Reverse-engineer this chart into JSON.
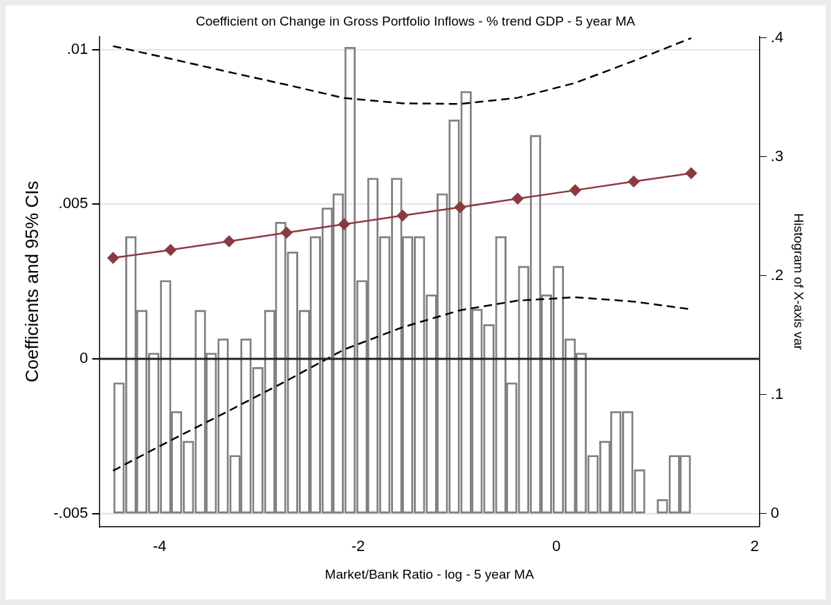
{
  "chart_data": {
    "type": "line",
    "title": "Coefficient on Change in Gross Portfolio Inflows - % trend GDP - 5 year MA",
    "xlabel": "Market/Bank Ratio - log - 5 year MA",
    "ylabel": "Coefficients and 95% CIs",
    "y2label": "Histogram of X-axis var",
    "xlim": [
      -4.61,
      2.05
    ],
    "xticks": [
      -4,
      -2,
      0,
      2
    ],
    "ylim": [
      -0.00543,
      0.01042
    ],
    "yticks": [
      {
        "value": -0.005,
        "label": "-.005"
      },
      {
        "value": 0,
        "label": "0"
      },
      {
        "value": 0.005,
        "label": ".005"
      },
      {
        "value": 0.01,
        "label": ".01"
      }
    ],
    "y2lim": [
      -0.011,
      0.401
    ],
    "y2ticks": [
      {
        "value": 0,
        "label": "0"
      },
      {
        "value": 0.1,
        "label": ".1"
      },
      {
        "value": 0.2,
        "label": ".2"
      },
      {
        "value": 0.3,
        "label": ".3"
      },
      {
        "value": 0.4,
        "label": ".4"
      }
    ],
    "grid": "y",
    "legend": false,
    "ref_lines": [
      {
        "axis": "y",
        "value": 0,
        "color": "#222222"
      }
    ],
    "series": [
      {
        "type": "bar",
        "axis": "y2",
        "color": "#808080",
        "x": [
          -4.41,
          -4.29,
          -4.18,
          -4.06,
          -3.94,
          -3.83,
          -3.71,
          -3.59,
          -3.48,
          -3.36,
          -3.24,
          -3.13,
          -3.01,
          -2.89,
          -2.78,
          -2.66,
          -2.54,
          -2.43,
          -2.31,
          -2.2,
          -2.08,
          -1.96,
          -1.85,
          -1.73,
          -1.61,
          -1.5,
          -1.38,
          -1.26,
          -1.15,
          -1.03,
          -0.91,
          -0.8,
          -0.68,
          -0.56,
          -0.45,
          -0.33,
          -0.21,
          -0.1,
          0.02,
          0.14,
          0.25,
          0.37,
          0.49,
          0.6,
          0.72,
          0.84,
          0.95,
          1.07,
          1.19,
          1.3
        ],
        "values": [
          0.11,
          0.233,
          0.171,
          0.135,
          0.196,
          0.086,
          0.061,
          0.171,
          0.135,
          0.147,
          0.049,
          0.147,
          0.123,
          0.171,
          0.245,
          0.22,
          0.171,
          0.233,
          0.257,
          0.269,
          0.392,
          0.196,
          0.282,
          0.233,
          0.282,
          0.233,
          0.233,
          0.184,
          0.269,
          0.331,
          0.355,
          0.172,
          0.159,
          0.233,
          0.11,
          0.208,
          0.318,
          0.184,
          0.208,
          0.147,
          0.135,
          0.049,
          0.061,
          0.086,
          0.086,
          0.037,
          0,
          0.012,
          0.049,
          0.049
        ]
      },
      {
        "color": "#8b3a40",
        "marker": "diamond",
        "line_style": "solid",
        "x": [
          -4.47,
          -3.89,
          -3.3,
          -2.72,
          -2.14,
          -1.55,
          -0.97,
          -0.39,
          0.19,
          0.78,
          1.36
        ],
        "values": [
          0.00326,
          0.00352,
          0.0038,
          0.00408,
          0.00435,
          0.00463,
          0.0049,
          0.00518,
          0.00545,
          0.00573,
          0.006
        ]
      },
      {
        "color": "#000000",
        "marker": "none",
        "line_style": "dashed",
        "x": [
          -4.47,
          -3.89,
          -3.3,
          -2.72,
          -2.14,
          -1.55,
          -0.97,
          -0.39,
          0.19,
          0.78,
          1.36
        ],
        "values": [
          0.01011,
          0.0097,
          0.00927,
          0.00886,
          0.00843,
          0.00826,
          0.00824,
          0.00844,
          0.00892,
          0.00963,
          0.01037
        ]
      },
      {
        "color": "#000000",
        "marker": "none",
        "line_style": "dashed",
        "x": [
          -4.47,
          -3.89,
          -3.3,
          -2.72,
          -2.14,
          -1.55,
          -0.97,
          -0.39,
          0.19,
          0.78,
          1.36
        ],
        "values": [
          -0.00362,
          -0.00264,
          -0.00168,
          -0.00071,
          0.0003,
          0.00102,
          0.00157,
          0.00188,
          0.00199,
          0.00185,
          0.0016
        ]
      }
    ]
  }
}
